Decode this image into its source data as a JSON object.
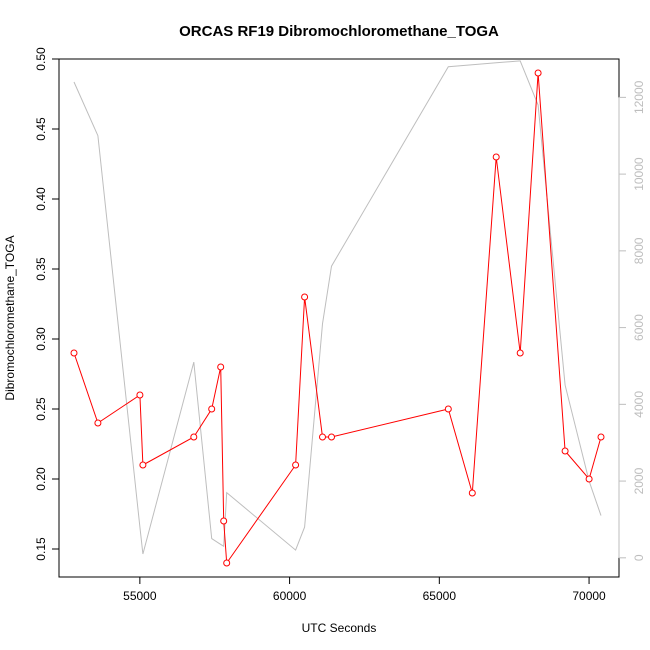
{
  "chart_data": {
    "type": "line",
    "title": "ORCAS RF19 Dibromochloromethane_TOGA",
    "xlabel": "UTC Seconds",
    "ylabel": "Dibromochloromethane_TOGA",
    "xlim": [
      52300,
      71000
    ],
    "ylim": [
      0.13,
      0.5
    ],
    "y2lim": [
      -500,
      13000
    ],
    "x_ticks": [
      55000,
      60000,
      65000,
      70000
    ],
    "y_ticks": [
      0.15,
      0.2,
      0.25,
      0.3,
      0.35,
      0.4,
      0.45,
      0.5
    ],
    "y2_ticks": [
      0,
      2000,
      4000,
      6000,
      8000,
      10000,
      12000
    ],
    "x_tick_labels": [
      "55000",
      "60000",
      "65000",
      "70000"
    ],
    "y_tick_labels": [
      "0.15",
      "0.20",
      "0.25",
      "0.30",
      "0.35",
      "0.40",
      "0.45",
      "0.50"
    ],
    "y2_tick_labels": [
      "0",
      "2000",
      "4000",
      "6000",
      "8000",
      "10000",
      "12000"
    ],
    "colors": {
      "primary": "#ff0000",
      "secondary": "#bebebe",
      "axis": "#000000"
    },
    "series": [
      {
        "axis": "left",
        "style": "line+open-circle",
        "x": [
          52800,
          53600,
          55000,
          55100,
          56800,
          57400,
          57700,
          57800,
          57900,
          60200,
          60500,
          61100,
          61400,
          65300,
          66100,
          66900,
          67700,
          68300,
          69200,
          70000,
          70400
        ],
        "y": [
          0.29,
          0.24,
          0.26,
          0.21,
          0.23,
          0.25,
          0.28,
          0.17,
          0.14,
          0.21,
          0.33,
          0.23,
          0.23,
          0.25,
          0.19,
          0.43,
          0.29,
          0.49,
          0.22,
          0.2,
          0.23
        ]
      },
      {
        "axis": "right",
        "style": "line",
        "x": [
          52800,
          53600,
          55000,
          55100,
          56800,
          57400,
          57700,
          57800,
          57900,
          60200,
          60500,
          61100,
          61400,
          65300,
          66100,
          66900,
          67700,
          68300,
          69200,
          70000,
          70400
        ],
        "y": [
          12400,
          11000,
          800,
          100,
          5100,
          500,
          350,
          300,
          1700,
          200,
          800,
          6100,
          7600,
          12800,
          12850,
          12900,
          12950,
          11800,
          4500,
          2000,
          1100
        ]
      }
    ]
  }
}
